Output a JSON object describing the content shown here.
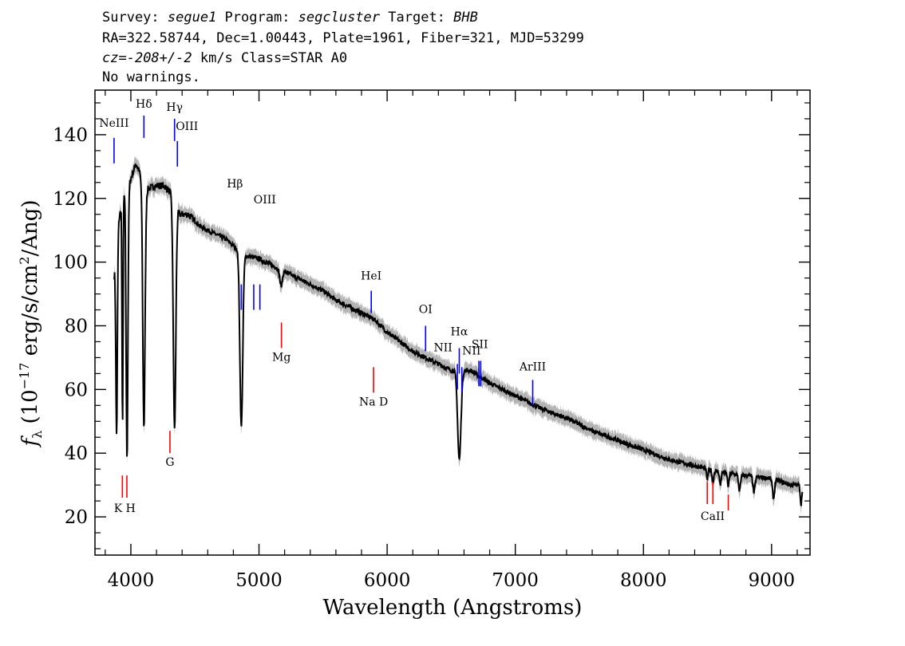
{
  "header": {
    "line1": {
      "survey_label": "Survey: ",
      "survey": "segue1",
      "program_label": " Program: ",
      "program": "segcluster",
      "target_label": " Target: ",
      "target": "BHB"
    },
    "line2": "RA=322.58744, Dec=1.00443, Plate=1961, Fiber=321, MJD=53299",
    "line3": {
      "cz_label": "cz=",
      "cz": "-208+/-2",
      "unit": " km/s",
      "class": " Class=STAR A0"
    },
    "line4": "No warnings."
  },
  "chart_data": {
    "type": "line",
    "xlabel": "Wavelength (Angstroms)",
    "ylabel": "f_λ (10^-17 erg/s/cm^2/Ang)",
    "xlim": [
      3720,
      9300
    ],
    "ylim": [
      8,
      154
    ],
    "x_ticks": [
      4000,
      5000,
      6000,
      7000,
      8000,
      9000
    ],
    "y_ticks": [
      20,
      40,
      60,
      80,
      100,
      120,
      140
    ],
    "grid": false,
    "colors": {
      "spectrum": "#000000",
      "error": "#b4b4b4",
      "emission": "#0000ff",
      "absorption": "#ff0000"
    },
    "continuum": [
      [
        3870,
        96
      ],
      [
        3900,
        112
      ],
      [
        3950,
        122
      ],
      [
        3990,
        125
      ],
      [
        4040,
        131
      ],
      [
        4080,
        127
      ],
      [
        4130,
        123
      ],
      [
        4200,
        124
      ],
      [
        4260,
        124
      ],
      [
        4330,
        121
      ],
      [
        4380,
        115
      ],
      [
        4450,
        115
      ],
      [
        4550,
        111
      ],
      [
        4650,
        109
      ],
      [
        4750,
        107
      ],
      [
        4830,
        104
      ],
      [
        4900,
        102
      ],
      [
        5000,
        101
      ],
      [
        5100,
        99
      ],
      [
        5200,
        97
      ],
      [
        5350,
        94
      ],
      [
        5500,
        91
      ],
      [
        5600,
        88
      ],
      [
        5700,
        86
      ],
      [
        5800,
        84
      ],
      [
        5900,
        82
      ],
      [
        6000,
        78
      ],
      [
        6100,
        75
      ],
      [
        6200,
        72
      ],
      [
        6300,
        70
      ],
      [
        6400,
        68
      ],
      [
        6500,
        66
      ],
      [
        6650,
        66
      ],
      [
        6800,
        62
      ],
      [
        6900,
        60
      ],
      [
        7000,
        58
      ],
      [
        7200,
        54
      ],
      [
        7400,
        51
      ],
      [
        7600,
        47
      ],
      [
        7800,
        44
      ],
      [
        8000,
        41
      ],
      [
        8200,
        38
      ],
      [
        8400,
        36
      ],
      [
        8600,
        34
      ],
      [
        8800,
        33
      ],
      [
        9000,
        32
      ],
      [
        9150,
        30
      ],
      [
        9240,
        30
      ]
    ],
    "absorption_features": [
      {
        "x": 3889,
        "depth": 60,
        "width": 6
      },
      {
        "x": 3935,
        "depth": 70,
        "width": 4
      },
      {
        "x": 3970,
        "depth": 85,
        "width": 7
      },
      {
        "x": 4102,
        "depth": 77,
        "width": 9
      },
      {
        "x": 4341,
        "depth": 72,
        "width": 10
      },
      {
        "x": 4862,
        "depth": 55,
        "width": 11
      },
      {
        "x": 5172,
        "depth": 5,
        "width": 10
      },
      {
        "x": 6563,
        "depth": 28,
        "width": 13
      },
      {
        "x": 8498,
        "depth": 3,
        "width": 6
      },
      {
        "x": 8542,
        "depth": 4,
        "width": 6
      },
      {
        "x": 8600,
        "depth": 4,
        "width": 6
      },
      {
        "x": 8662,
        "depth": 4,
        "width": 6
      },
      {
        "x": 8750,
        "depth": 5,
        "width": 8
      },
      {
        "x": 8863,
        "depth": 5,
        "width": 8
      },
      {
        "x": 9015,
        "depth": 6,
        "width": 8
      },
      {
        "x": 9230,
        "depth": 6,
        "width": 6
      }
    ],
    "emission_lines": [
      {
        "label": "NeIII",
        "x": 3869,
        "y1": 131,
        "y2": 139,
        "label_y": 142.5
      },
      {
        "label": "Hδ",
        "x": 4102,
        "y1": 139,
        "y2": 146,
        "label_y": 148.5
      },
      {
        "label": "Hγ",
        "x": 4341,
        "y1": 138,
        "y2": 145,
        "label_y": 147.5
      },
      {
        "label": "OIII",
        "x": 4363,
        "y1": 130,
        "y2": 138,
        "label_y": 141.5
      },
      {
        "label": "Hβ",
        "x": 4862,
        "y1": 85,
        "y2": 93,
        "label_y": 123.5
      },
      {
        "label": "OIII",
        "x": 4959,
        "y1": 85,
        "y2": 93,
        "label_y": 118.5
      },
      {
        "label": "OIII",
        "x": 5007,
        "y1": 85,
        "y2": 93,
        "label_y": 118.5
      },
      {
        "label": "HeI",
        "x": 5876,
        "y1": 84,
        "y2": 91,
        "label_y": 94.5
      },
      {
        "label": "OI",
        "x": 6300,
        "y1": 72,
        "y2": 80,
        "label_y": 84
      },
      {
        "label": "NII",
        "x": 6548,
        "y1": 60,
        "y2": 68,
        "label_y": 72
      },
      {
        "label": "Hα",
        "x": 6563,
        "y1": 65,
        "y2": 73,
        "label_y": 77
      },
      {
        "label": "NII",
        "x": 6583,
        "y1": 59,
        "y2": 67,
        "label_y": 71
      },
      {
        "label": "SII",
        "x": 6716,
        "y1": 61,
        "y2": 69,
        "label_y": 73
      },
      {
        "label": "SII",
        "x": 6730,
        "y1": 61,
        "y2": 69,
        "label_y": 73
      },
      {
        "label": "ArIII",
        "x": 7136,
        "y1": 55,
        "y2": 63,
        "label_y": 66
      }
    ],
    "absorption_lines": [
      {
        "label": "K",
        "x": 3934,
        "y1": 26,
        "y2": 33,
        "label_y": 21.5
      },
      {
        "label": "H",
        "x": 3969,
        "y1": 26,
        "y2": 33,
        "label_y": 21.5
      },
      {
        "label": "G",
        "x": 4305,
        "y1": 40,
        "y2": 47,
        "label_y": 36
      },
      {
        "label": "Mg",
        "x": 5175,
        "y1": 73,
        "y2": 81,
        "label_y": 69
      },
      {
        "label": "Na D",
        "x": 5894,
        "y1": 59,
        "y2": 67,
        "label_y": 55
      },
      {
        "label": "CaII",
        "x": 8498,
        "y1": 24,
        "y2": 31,
        "label_y": 19
      },
      {
        "label": "CaII",
        "x": 8542,
        "y1": 24,
        "y2": 31,
        "label_y": 19
      },
      {
        "label": "CaII",
        "x": 8662,
        "y1": 22,
        "y2": 27,
        "label_y": 19
      }
    ],
    "label_text": {
      "NeIII": "NeIII",
      "Hdelta": "Hδ",
      "Hgamma": "Hγ",
      "OIII": "OIII",
      "Hbeta": "Hβ",
      "HeI": "HeI",
      "OI": "OI",
      "NII": "NII",
      "Halpha": "Hα",
      "SII": "SII",
      "ArIII": "ArIII",
      "KH": "K H",
      "G": "G",
      "Mg": "Mg",
      "NaD": "Na D",
      "CaII": "CaII"
    }
  }
}
